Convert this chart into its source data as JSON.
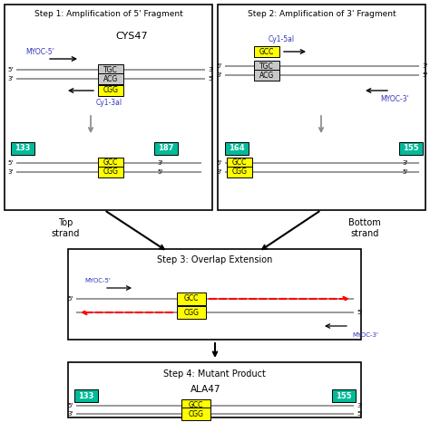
{
  "step1_title": "Step 1: Amplification of 5' Fragment",
  "step2_title": "Step 2: Amplification of 3' Fragment",
  "step3_title": "Step 3: Overlap Extension",
  "step4_title": "Step 4: Mutant Product",
  "green_color": "#00BB99",
  "yellow_color": "#FFFF00",
  "gray_box_color": "#C8C8C8",
  "blue_label_color": "#3333BB",
  "red_arrow_color": "#FF0000",
  "black_color": "#000000",
  "white_color": "#FFFFFF"
}
